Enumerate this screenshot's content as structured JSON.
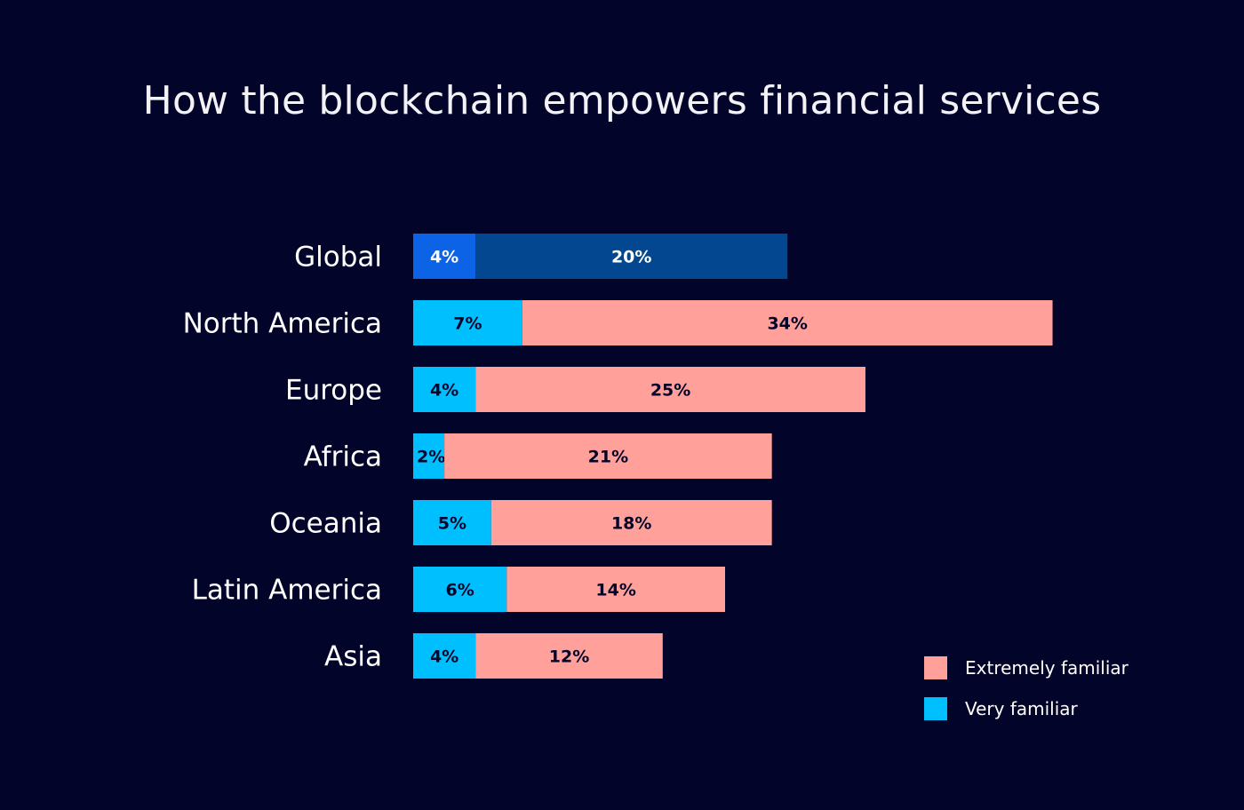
{
  "colors": {
    "background": "#03042a",
    "extremely": "#ffa19a",
    "very": "#00bfff",
    "global_very": "#0d63e6",
    "global_extremely": "#02478f",
    "text_dark": "#03042a",
    "text_light": "#ffffff"
  },
  "chart_data": {
    "type": "bar",
    "orientation": "horizontal",
    "stacked": true,
    "title": "How the blockchain empowers financial services",
    "categories": [
      "Global",
      "North America",
      "Europe",
      "Africa",
      "Oceania",
      "Latin America",
      "Asia"
    ],
    "series": [
      {
        "name": "Very familiar",
        "values": [
          4,
          7,
          4,
          2,
          5,
          6,
          4
        ],
        "labels": [
          "4%",
          "7%",
          "4%",
          "2%",
          "5%",
          "6%",
          "4%"
        ]
      },
      {
        "name": "Extremely familiar",
        "values": [
          20,
          34,
          25,
          21,
          18,
          14,
          12
        ],
        "labels": [
          "20%",
          "34%",
          "25%",
          "21%",
          "18%",
          "14%",
          "12%"
        ]
      }
    ],
    "xlabel": "",
    "ylabel": "",
    "xlim": [
      0,
      41
    ],
    "grid": false,
    "legend_position": "bottom-right"
  },
  "legend": {
    "items": [
      {
        "label": "Extremely familiar",
        "color": "#ffa19a"
      },
      {
        "label": "Very familiar",
        "color": "#00bfff"
      }
    ]
  }
}
